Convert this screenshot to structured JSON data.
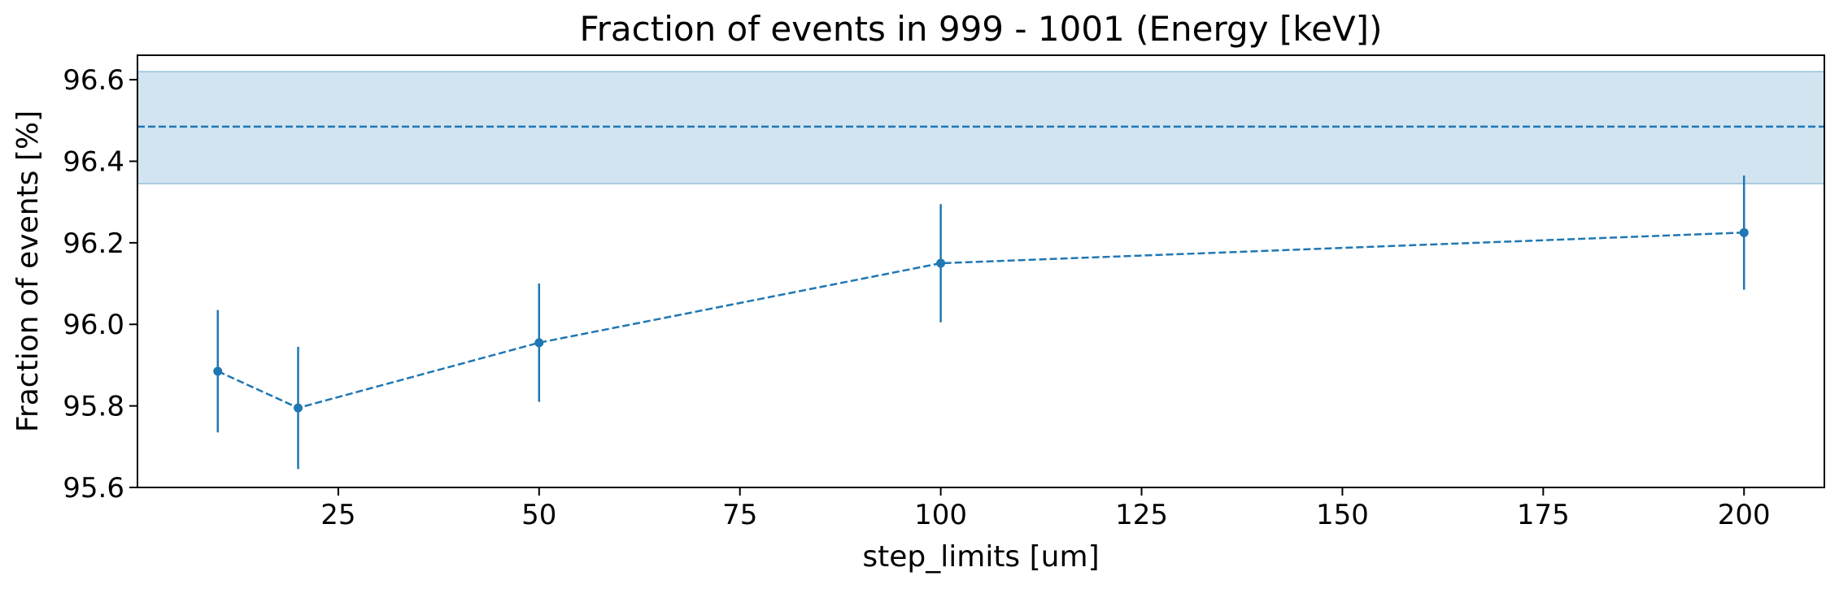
{
  "chart_data": {
    "type": "line",
    "title": "Fraction of events in 999 - 1001 (Energy [keV])",
    "xlabel": "step_limits [um]",
    "ylabel": "Fraction of events [%]",
    "xlim": [
      0,
      210
    ],
    "ylim": [
      95.6,
      96.66
    ],
    "xticks": [
      25,
      50,
      75,
      100,
      125,
      150,
      175,
      200
    ],
    "yticks": [
      95.6,
      95.8,
      96.0,
      96.2,
      96.4,
      96.6
    ],
    "grid": false,
    "series": [
      {
        "x": [
          10,
          20,
          50,
          100,
          200
        ],
        "y": [
          95.885,
          95.795,
          95.955,
          96.15,
          96.225
        ],
        "yerr": [
          0.15,
          0.15,
          0.145,
          0.145,
          0.14
        ],
        "style": "dashed",
        "marker": "o"
      }
    ],
    "reference": {
      "value": 96.485,
      "band": [
        96.345,
        96.62
      ],
      "style": "dashed"
    },
    "colors": {
      "series": "#1f77b4",
      "band": "#1f77b4"
    }
  }
}
